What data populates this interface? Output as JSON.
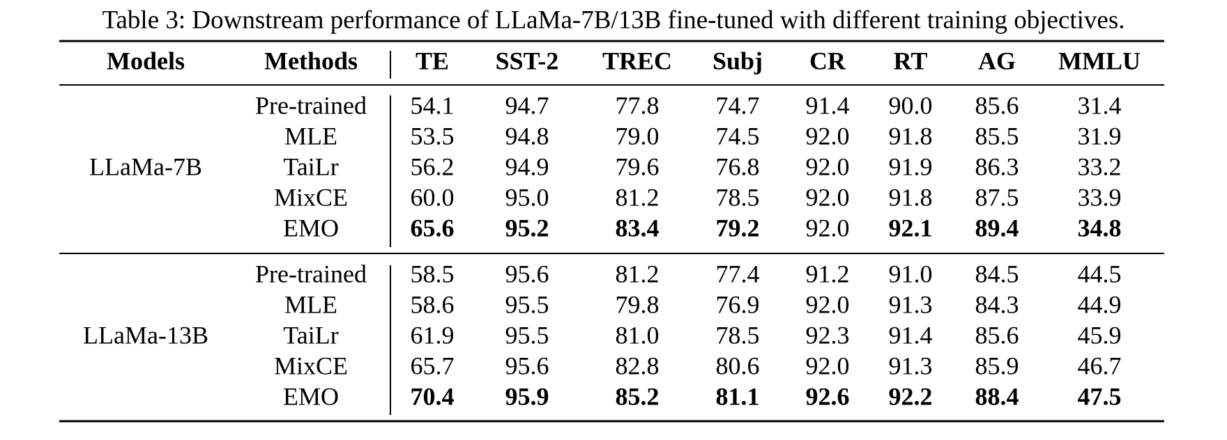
{
  "caption": "Table 3: Downstream performance of LLaMa-7B/13B fine-tuned with different training objectives.",
  "table": {
    "header": [
      "Models",
      "Methods",
      "TE",
      "SST-2",
      "TREC",
      "Subj",
      "CR",
      "RT",
      "AG",
      "MMLU"
    ],
    "groups": [
      {
        "model": "LLaMa-7B",
        "rows": [
          {
            "method": "Pre-trained",
            "values": [
              "54.1",
              "94.7",
              "77.8",
              "74.7",
              "91.4",
              "90.0",
              "85.6",
              "31.4"
            ],
            "bold": [
              false,
              false,
              false,
              false,
              false,
              false,
              false,
              false
            ]
          },
          {
            "method": "MLE",
            "values": [
              "53.5",
              "94.8",
              "79.0",
              "74.5",
              "92.0",
              "91.8",
              "85.5",
              "31.9"
            ],
            "bold": [
              false,
              false,
              false,
              false,
              false,
              false,
              false,
              false
            ]
          },
          {
            "method": "TaiLr",
            "values": [
              "56.2",
              "94.9",
              "79.6",
              "76.8",
              "92.0",
              "91.9",
              "86.3",
              "33.2"
            ],
            "bold": [
              false,
              false,
              false,
              false,
              false,
              false,
              false,
              false
            ]
          },
          {
            "method": "MixCE",
            "values": [
              "60.0",
              "95.0",
              "81.2",
              "78.5",
              "92.0",
              "91.8",
              "87.5",
              "33.9"
            ],
            "bold": [
              false,
              false,
              false,
              false,
              false,
              false,
              false,
              false
            ]
          },
          {
            "method": "EMO",
            "values": [
              "65.6",
              "95.2",
              "83.4",
              "79.2",
              "92.0",
              "92.1",
              "89.4",
              "34.8"
            ],
            "bold": [
              true,
              true,
              true,
              true,
              false,
              true,
              true,
              true
            ]
          }
        ]
      },
      {
        "model": "LLaMa-13B",
        "rows": [
          {
            "method": "Pre-trained",
            "values": [
              "58.5",
              "95.6",
              "81.2",
              "77.4",
              "91.2",
              "91.0",
              "84.5",
              "44.5"
            ],
            "bold": [
              false,
              false,
              false,
              false,
              false,
              false,
              false,
              false
            ]
          },
          {
            "method": "MLE",
            "values": [
              "58.6",
              "95.5",
              "79.8",
              "76.9",
              "92.0",
              "91.3",
              "84.3",
              "44.9"
            ],
            "bold": [
              false,
              false,
              false,
              false,
              false,
              false,
              false,
              false
            ]
          },
          {
            "method": "TaiLr",
            "values": [
              "61.9",
              "95.5",
              "81.0",
              "78.5",
              "92.3",
              "91.4",
              "85.6",
              "45.9"
            ],
            "bold": [
              false,
              false,
              false,
              false,
              false,
              false,
              false,
              false
            ]
          },
          {
            "method": "MixCE",
            "values": [
              "65.7",
              "95.6",
              "82.8",
              "80.6",
              "92.0",
              "91.3",
              "85.9",
              "46.7"
            ],
            "bold": [
              false,
              false,
              false,
              false,
              false,
              false,
              false,
              false
            ]
          },
          {
            "method": "EMO",
            "values": [
              "70.4",
              "95.9",
              "85.2",
              "81.1",
              "92.6",
              "92.2",
              "88.4",
              "47.5"
            ],
            "bold": [
              true,
              true,
              true,
              true,
              true,
              true,
              true,
              true
            ]
          }
        ]
      }
    ]
  }
}
